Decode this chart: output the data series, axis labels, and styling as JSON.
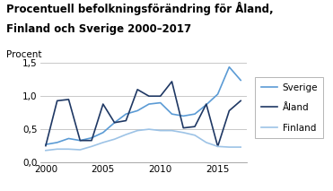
{
  "title_line1": "Procentuell befolkningsförändring för Åland,",
  "title_line2": "Finland och Sverige 2000–2017",
  "ylabel": "Procent",
  "years": [
    2000,
    2001,
    2002,
    2003,
    2004,
    2005,
    2006,
    2007,
    2008,
    2009,
    2010,
    2011,
    2012,
    2013,
    2014,
    2015,
    2016,
    2017
  ],
  "sverige": [
    0.27,
    0.3,
    0.36,
    0.33,
    0.37,
    0.45,
    0.6,
    0.73,
    0.78,
    0.88,
    0.9,
    0.73,
    0.7,
    0.73,
    0.87,
    1.03,
    1.44,
    1.24
  ],
  "aland": [
    0.25,
    0.93,
    0.95,
    0.33,
    0.33,
    0.88,
    0.6,
    0.63,
    1.1,
    1.0,
    1.0,
    1.22,
    0.52,
    0.54,
    0.88,
    0.24,
    0.78,
    0.93
  ],
  "finland": [
    0.18,
    0.2,
    0.2,
    0.19,
    0.24,
    0.3,
    0.35,
    0.42,
    0.48,
    0.5,
    0.48,
    0.48,
    0.45,
    0.41,
    0.3,
    0.24,
    0.23,
    0.23
  ],
  "sverige_color": "#5B9BD5",
  "aland_color": "#1F3864",
  "finland_color": "#9DC3E6",
  "ylim": [
    0.0,
    1.5
  ],
  "yticks": [
    0.0,
    0.5,
    1.0,
    1.5
  ],
  "ytick_labels": [
    "0,0",
    "0,5",
    "1,0",
    "1,5"
  ],
  "xticks": [
    2000,
    2005,
    2010,
    2015
  ],
  "xlim": [
    1999.5,
    2017.5
  ],
  "legend_labels": [
    "Sverige",
    "Åland",
    "Finland"
  ],
  "title_fontsize": 8.5,
  "ylabel_fontsize": 7.5,
  "axis_fontsize": 7.5,
  "legend_fontsize": 7.5,
  "linewidth": 1.2,
  "background_color": "#ffffff",
  "grid_color": "#BFBFBF"
}
